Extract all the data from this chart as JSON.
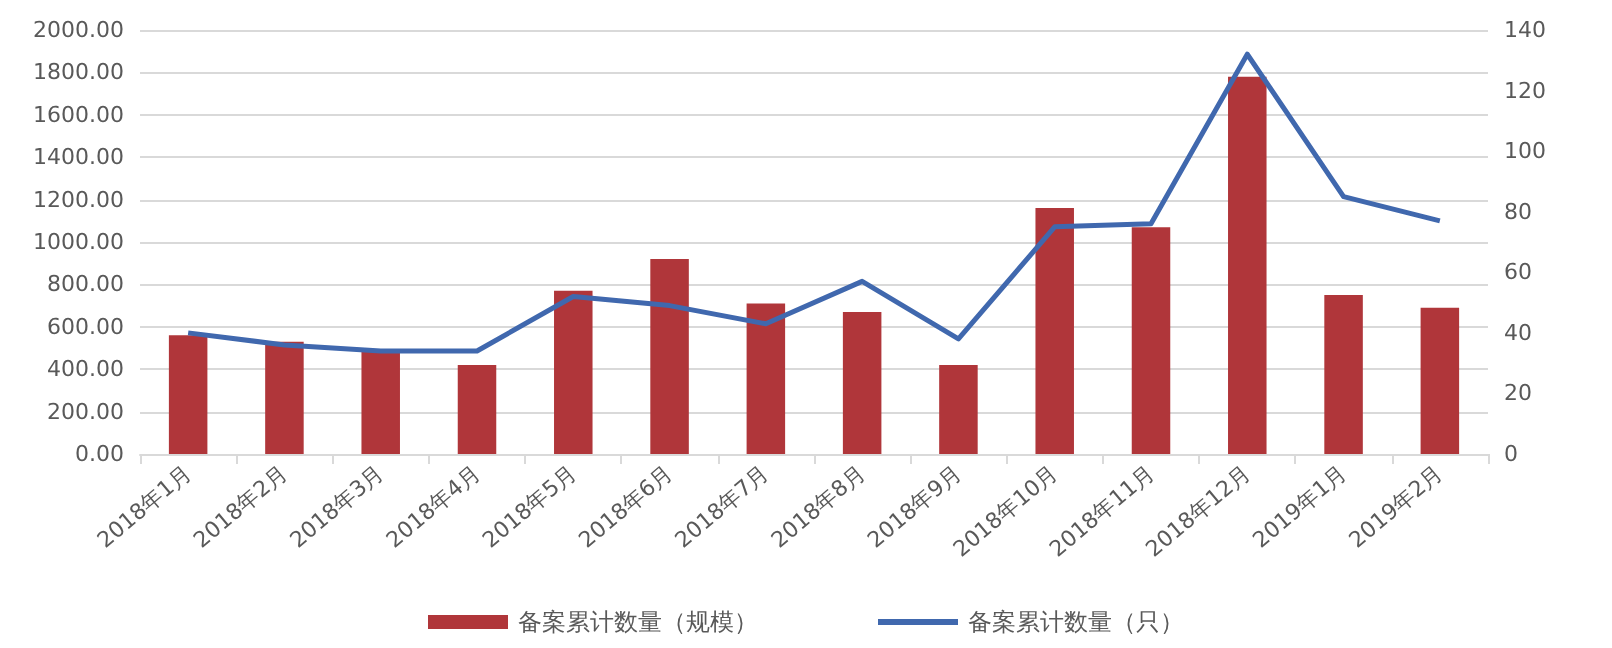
{
  "chart_data": {
    "type": "bar",
    "categories": [
      "2018年1月",
      "2018年2月",
      "2018年3月",
      "2018年4月",
      "2018年5月",
      "2018年6月",
      "2018年7月",
      "2018年8月",
      "2018年9月",
      "2018年10月",
      "2018年11月",
      "2018年12月",
      "2019年1月",
      "2019年2月"
    ],
    "series": [
      {
        "name": "备案累计数量（规模）",
        "color": "#b0363a",
        "values": [
          560,
          530,
          490,
          420,
          770,
          920,
          710,
          670,
          420,
          1160,
          1070,
          1780,
          750,
          690
        ]
      },
      {
        "name": "备案累计数量（只）",
        "type": "line",
        "axis": "y2",
        "color": "#4068ae",
        "values": [
          40,
          36,
          34,
          34,
          52,
          49,
          43,
          57,
          38,
          75,
          76,
          132,
          85,
          77
        ]
      }
    ],
    "ylim": [
      0,
      2000
    ],
    "yticks": [
      {
        "value": 0,
        "label": "0.00"
      },
      {
        "value": 200,
        "label": "200.00"
      },
      {
        "value": 400,
        "label": "400.00"
      },
      {
        "value": 600,
        "label": "600.00"
      },
      {
        "value": 800,
        "label": "800.00"
      },
      {
        "value": 1000,
        "label": "1000.00"
      },
      {
        "value": 1200,
        "label": "1200.00"
      },
      {
        "value": 1400,
        "label": "1400.00"
      },
      {
        "value": 1600,
        "label": "1600.00"
      },
      {
        "value": 1800,
        "label": "1800.00"
      },
      {
        "value": 2000,
        "label": "2000.00"
      }
    ],
    "y2lim": [
      0,
      140
    ],
    "y2ticks": [
      0,
      20,
      40,
      60,
      80,
      100,
      120,
      140
    ],
    "grid": "y",
    "legend": "bottom",
    "marker": "none",
    "line_style": "solid"
  }
}
